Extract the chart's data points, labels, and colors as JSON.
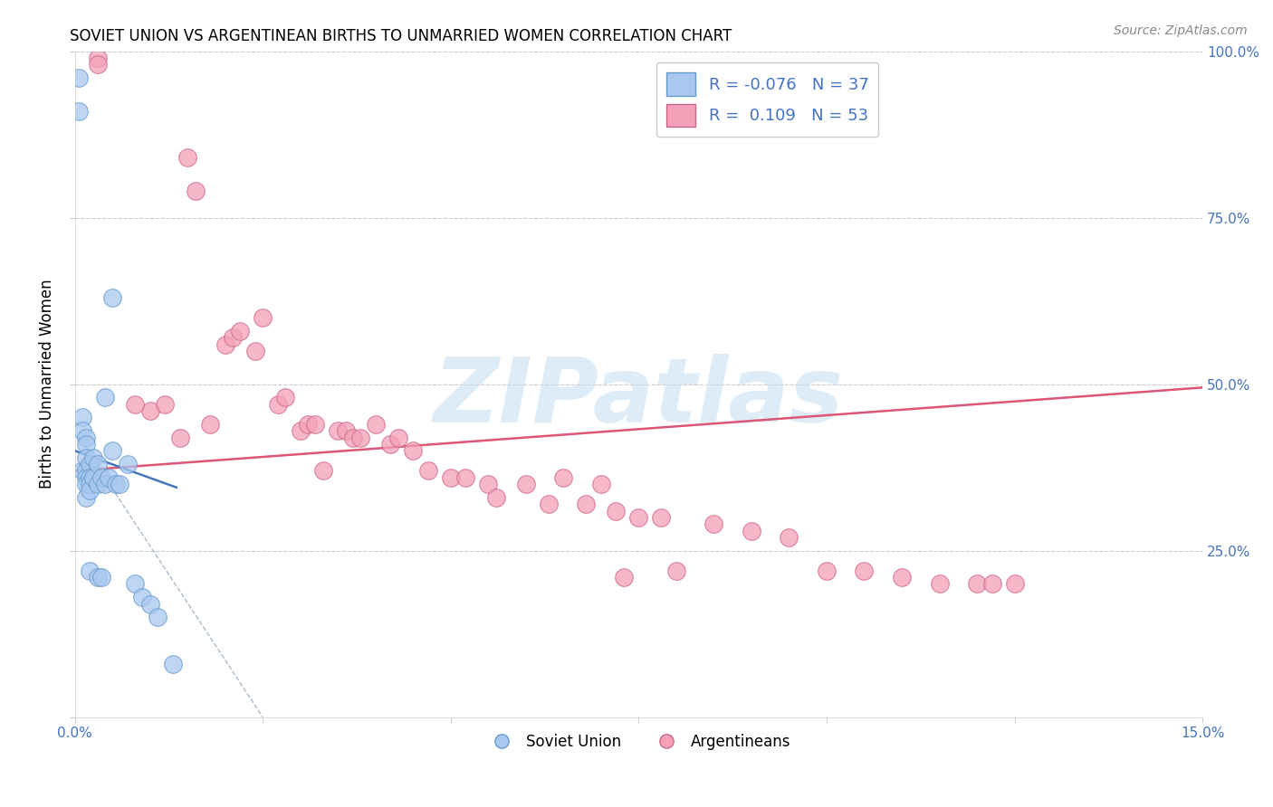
{
  "title": "SOVIET UNION VS ARGENTINEAN BIRTHS TO UNMARRIED WOMEN CORRELATION CHART",
  "source": "Source: ZipAtlas.com",
  "ylabel": "Births to Unmarried Women",
  "xlim": [
    0.0,
    15.0
  ],
  "ylim": [
    0.0,
    100.0
  ],
  "watermark": "ZIPatlas",
  "blue_fill": "#A8C8F0",
  "blue_edge": "#6699CC",
  "pink_fill": "#F4A0B8",
  "pink_edge": "#CC6688",
  "blue_line_color": "#4477BB",
  "pink_line_color": "#DD5577",
  "gray_dash_color": "#AABBCC",
  "blue_points_x": [
    0.05,
    0.05,
    0.1,
    0.1,
    0.1,
    0.15,
    0.15,
    0.15,
    0.15,
    0.15,
    0.15,
    0.15,
    0.2,
    0.2,
    0.2,
    0.2,
    0.2,
    0.25,
    0.25,
    0.3,
    0.3,
    0.3,
    0.35,
    0.35,
    0.4,
    0.4,
    0.45,
    0.5,
    0.5,
    0.55,
    0.6,
    0.7,
    0.8,
    0.9,
    1.0,
    1.1,
    1.3
  ],
  "blue_points_y": [
    96,
    91,
    45,
    43,
    37,
    42,
    41,
    39,
    37,
    36,
    35,
    33,
    38,
    36,
    35,
    34,
    22,
    39,
    36,
    38,
    35,
    21,
    36,
    21,
    48,
    35,
    36,
    63,
    40,
    35,
    35,
    38,
    20,
    18,
    17,
    15,
    8
  ],
  "pink_points_x": [
    0.3,
    0.3,
    1.5,
    1.6,
    2.0,
    2.1,
    2.2,
    2.4,
    2.5,
    2.7,
    2.8,
    3.0,
    3.1,
    3.2,
    3.5,
    3.6,
    3.7,
    3.8,
    4.0,
    4.2,
    4.3,
    4.5,
    4.7,
    5.0,
    5.2,
    5.5,
    5.6,
    6.0,
    6.3,
    6.5,
    6.8,
    7.0,
    7.2,
    7.5,
    7.8,
    8.0,
    8.5,
    9.0,
    9.5,
    10.0,
    10.5,
    11.0,
    11.5,
    12.0,
    12.5,
    1.0,
    1.2,
    1.4,
    0.8,
    1.8,
    3.3,
    7.3,
    12.2
  ],
  "pink_points_y": [
    99,
    98,
    84,
    79,
    56,
    57,
    58,
    55,
    60,
    47,
    48,
    43,
    44,
    44,
    43,
    43,
    42,
    42,
    44,
    41,
    42,
    40,
    37,
    36,
    36,
    35,
    33,
    35,
    32,
    36,
    32,
    35,
    31,
    30,
    30,
    22,
    29,
    28,
    27,
    22,
    22,
    21,
    20,
    20,
    20,
    46,
    47,
    42,
    47,
    44,
    37,
    21,
    20
  ],
  "blue_line_x": [
    0.0,
    1.35
  ],
  "blue_line_y": [
    40.0,
    34.5
  ],
  "pink_line_x": [
    0.0,
    15.0
  ],
  "pink_line_y": [
    37.0,
    49.5
  ],
  "gray_dash_line_x": [
    0.05,
    2.5
  ],
  "gray_dash_line_y": [
    42.0,
    0.0
  ]
}
